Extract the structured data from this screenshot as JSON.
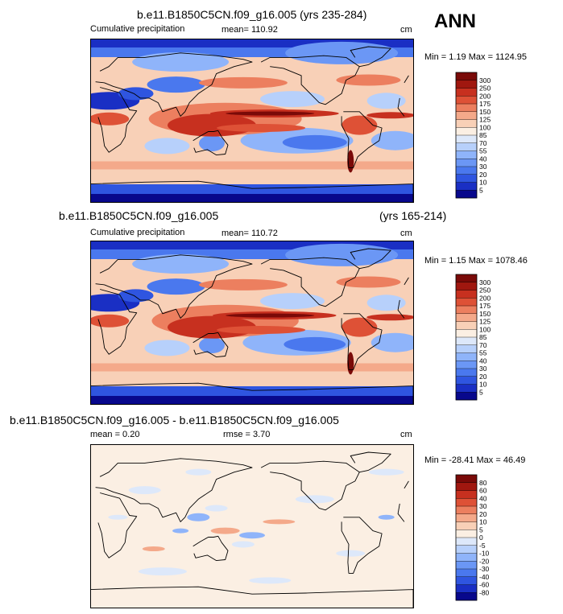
{
  "season": "ANN",
  "panels": [
    {
      "title_left": "b.e11.B1850C5CN.f09_g16.005 (yrs 235-284)",
      "title_right": "",
      "subtitle": "Cumulative precipitation",
      "stat_text": "mean= 110.92",
      "rmse_text": "",
      "units": "cm",
      "minmax": "Min =   1.19 Max = 1124.95",
      "colorbar": {
        "levels": [
          "5",
          "10",
          "20",
          "30",
          "40",
          "55",
          "70",
          "85",
          "100",
          "125",
          "150",
          "175",
          "200",
          "250",
          "300"
        ],
        "colors": [
          "#08088c",
          "#1a2fc4",
          "#2f55e0",
          "#4a78ee",
          "#6b97f5",
          "#8fb4fa",
          "#b7d0fb",
          "#dde8fa",
          "#fbefe3",
          "#f8d0b7",
          "#f4a98a",
          "#ec7f5f",
          "#de5136",
          "#c7301f",
          "#a0170f",
          "#7a0a08"
        ]
      },
      "field": "precip"
    },
    {
      "title_left": "b.e11.B1850C5CN.f09_g16.005",
      "title_right": "(yrs 165-214)",
      "subtitle": "Cumulative precipitation",
      "stat_text": "mean= 110.72",
      "rmse_text": "",
      "units": "cm",
      "minmax": "Min =   1.15 Max = 1078.46",
      "colorbar": {
        "levels": [
          "5",
          "10",
          "20",
          "30",
          "40",
          "55",
          "70",
          "85",
          "100",
          "125",
          "150",
          "175",
          "200",
          "250",
          "300"
        ],
        "colors": [
          "#08088c",
          "#1a2fc4",
          "#2f55e0",
          "#4a78ee",
          "#6b97f5",
          "#8fb4fa",
          "#b7d0fb",
          "#dde8fa",
          "#fbefe3",
          "#f8d0b7",
          "#f4a98a",
          "#ec7f5f",
          "#de5136",
          "#c7301f",
          "#a0170f",
          "#7a0a08"
        ]
      },
      "field": "precip"
    },
    {
      "title_left": "b.e11.B1850C5CN.f09_g16.005 - b.e11.B1850C5CN.f09_g16.005",
      "title_right": "",
      "subtitle": "",
      "stat_text": "mean =   0.20",
      "rmse_text": "rmse =   3.70",
      "units": "cm",
      "minmax": "Min = -28.41 Max =  46.49",
      "colorbar": {
        "levels": [
          "-80",
          "-60",
          "-40",
          "-30",
          "-20",
          "-10",
          "-5",
          "0",
          "5",
          "10",
          "20",
          "30",
          "40",
          "60",
          "80"
        ],
        "colors": [
          "#08088c",
          "#1a2fc4",
          "#2f55e0",
          "#4a78ee",
          "#6b97f5",
          "#8fb4fa",
          "#b7d0fb",
          "#dde8fa",
          "#fbefe3",
          "#f8d0b7",
          "#f4a98a",
          "#ec7f5f",
          "#de5136",
          "#c7301f",
          "#a0170f",
          "#7a0a08"
        ]
      },
      "field": "diff"
    }
  ],
  "chart_data": [
    {
      "type": "heatmap",
      "title": "b.e11.B1850C5CN.f09_g16.005 (yrs 235-284)",
      "subtitle": "Cumulative precipitation",
      "units": "cm",
      "mean": 110.92,
      "min": 1.19,
      "max": 1124.95
    },
    {
      "type": "heatmap",
      "title": "b.e11.B1850C5CN.f09_g16.005 (yrs 165-214)",
      "subtitle": "Cumulative precipitation",
      "units": "cm",
      "mean": 110.72,
      "min": 1.15,
      "max": 1078.46
    },
    {
      "type": "heatmap",
      "title": "b.e11.B1850C5CN.f09_g16.005 - b.e11.B1850C5CN.f09_g16.005",
      "units": "cm",
      "mean": 0.2,
      "rmse": 3.7,
      "min": -28.41,
      "max": 46.49
    }
  ]
}
